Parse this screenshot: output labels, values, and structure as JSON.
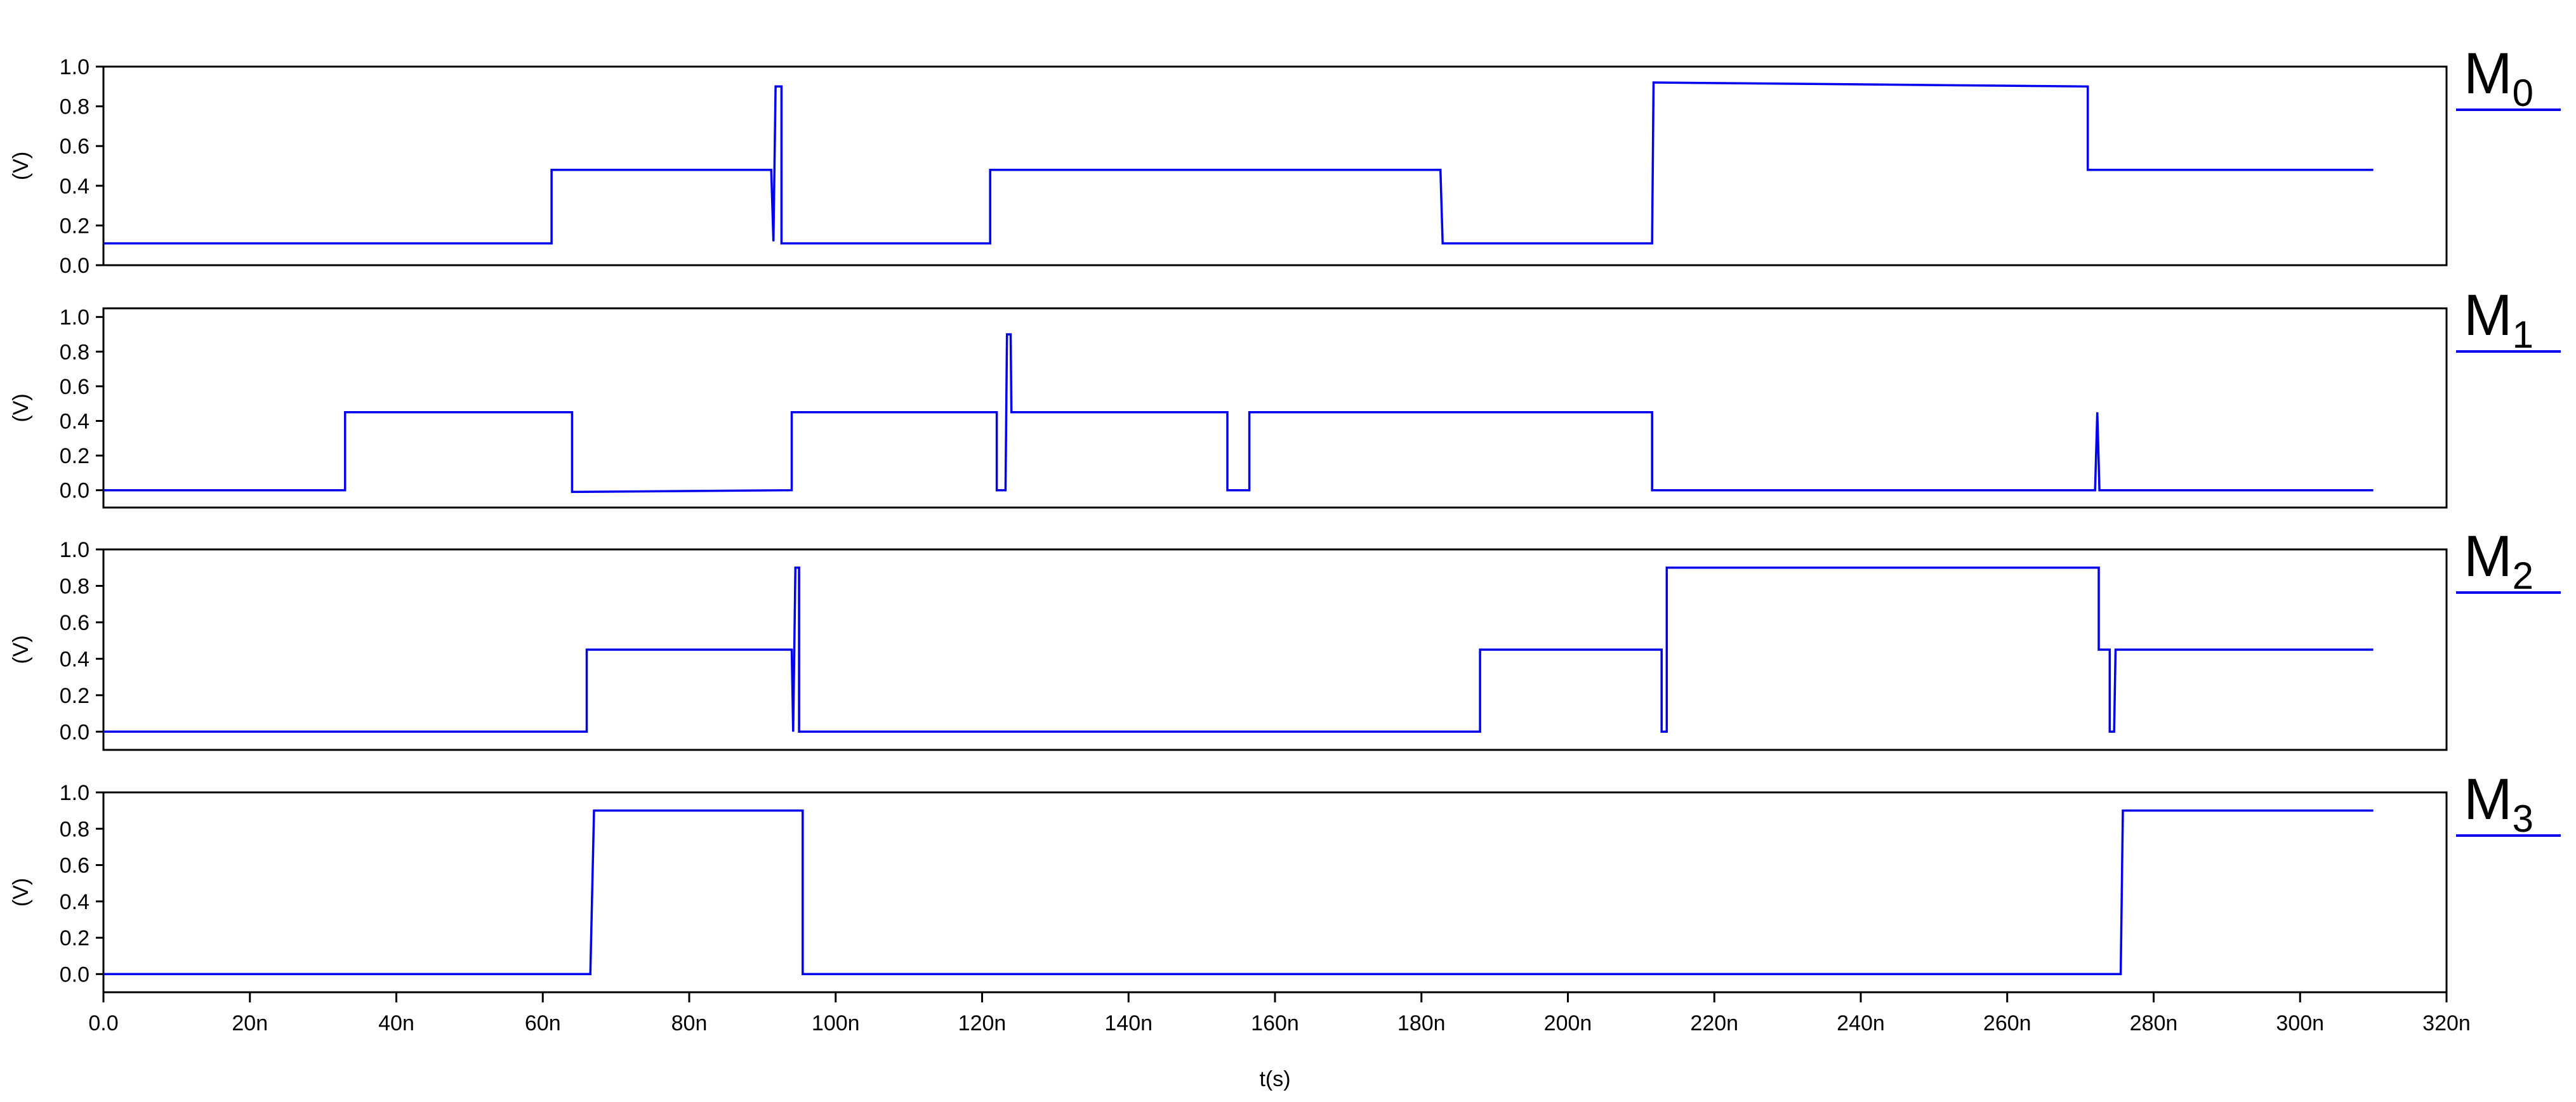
{
  "chart_data": {
    "type": "line",
    "colors": {
      "trace": "#0000ee",
      "axis": "#000000"
    },
    "x_axis": {
      "label": "t(s)",
      "range_ns": [
        0,
        320
      ],
      "ticks": [
        {
          "value": 0,
          "label": "0.0"
        },
        {
          "value": 20,
          "label": "20n"
        },
        {
          "value": 40,
          "label": "40n"
        },
        {
          "value": 60,
          "label": "60n"
        },
        {
          "value": 80,
          "label": "80n"
        },
        {
          "value": 100,
          "label": "100n"
        },
        {
          "value": 120,
          "label": "120n"
        },
        {
          "value": 140,
          "label": "140n"
        },
        {
          "value": 160,
          "label": "160n"
        },
        {
          "value": 180,
          "label": "180n"
        },
        {
          "value": 200,
          "label": "200n"
        },
        {
          "value": 220,
          "label": "220n"
        },
        {
          "value": 240,
          "label": "240n"
        },
        {
          "value": 260,
          "label": "260n"
        },
        {
          "value": 280,
          "label": "280n"
        },
        {
          "value": 300,
          "label": "300n"
        },
        {
          "value": 320,
          "label": "320n"
        }
      ]
    },
    "panels": [
      {
        "name": "M",
        "subscript": "0",
        "ylabel": "(V)",
        "ylim": [
          0.0,
          1.0
        ],
        "yticks": [
          {
            "value": 0.0,
            "label": "0.0"
          },
          {
            "value": 0.2,
            "label": "0.2"
          },
          {
            "value": 0.4,
            "label": "0.4"
          },
          {
            "value": 0.6,
            "label": "0.6"
          },
          {
            "value": 0.8,
            "label": "0.8"
          },
          {
            "value": 1.0,
            "label": "1.0"
          }
        ],
        "points": [
          [
            0,
            0.11
          ],
          [
            61.2,
            0.11
          ],
          [
            61.2,
            0.48
          ],
          [
            91.2,
            0.48
          ],
          [
            91.5,
            0.12
          ],
          [
            91.8,
            0.9
          ],
          [
            92.6,
            0.9
          ],
          [
            92.6,
            0.11
          ],
          [
            121.1,
            0.11
          ],
          [
            121.1,
            0.48
          ],
          [
            182.6,
            0.48
          ],
          [
            182.9,
            0.11
          ],
          [
            211.5,
            0.11
          ],
          [
            211.7,
            0.92
          ],
          [
            271.0,
            0.9
          ],
          [
            271.0,
            0.48
          ],
          [
            310,
            0.48
          ]
        ]
      },
      {
        "name": "M",
        "subscript": "1",
        "ylabel": "(V)",
        "ylim": [
          -0.1,
          1.05
        ],
        "yticks": [
          {
            "value": 0.0,
            "label": "0.0"
          },
          {
            "value": 0.2,
            "label": "0.2"
          },
          {
            "value": 0.4,
            "label": "0.4"
          },
          {
            "value": 0.6,
            "label": "0.6"
          },
          {
            "value": 0.8,
            "label": "0.8"
          },
          {
            "value": 1.0,
            "label": "1.0"
          }
        ],
        "points": [
          [
            0,
            0.0
          ],
          [
            33.0,
            0.0
          ],
          [
            33.0,
            0.45
          ],
          [
            64.0,
            0.45
          ],
          [
            64.0,
            -0.01
          ],
          [
            94.0,
            0.0
          ],
          [
            94.0,
            0.45
          ],
          [
            122.0,
            0.45
          ],
          [
            122.0,
            0.0
          ],
          [
            123.2,
            0.0
          ],
          [
            123.4,
            0.9
          ],
          [
            123.9,
            0.9
          ],
          [
            124.0,
            0.45
          ],
          [
            153.5,
            0.45
          ],
          [
            153.5,
            0.0
          ],
          [
            156.5,
            0.0
          ],
          [
            156.5,
            0.45
          ],
          [
            211.5,
            0.45
          ],
          [
            211.5,
            0.0
          ],
          [
            272.0,
            0.0
          ],
          [
            272.3,
            0.45
          ],
          [
            272.6,
            0.0
          ],
          [
            310,
            0.0
          ]
        ]
      },
      {
        "name": "M",
        "subscript": "2",
        "ylabel": "(V)",
        "ylim": [
          -0.1,
          1.0
        ],
        "yticks": [
          {
            "value": 0.0,
            "label": "0.0"
          },
          {
            "value": 0.2,
            "label": "0.2"
          },
          {
            "value": 0.4,
            "label": "0.4"
          },
          {
            "value": 0.6,
            "label": "0.6"
          },
          {
            "value": 0.8,
            "label": "0.8"
          },
          {
            "value": 1.0,
            "label": "1.0"
          }
        ],
        "points": [
          [
            0,
            0.0
          ],
          [
            66.0,
            0.0
          ],
          [
            66.0,
            0.45
          ],
          [
            94.0,
            0.45
          ],
          [
            94.2,
            0.0
          ],
          [
            94.5,
            0.9
          ],
          [
            95.0,
            0.9
          ],
          [
            95.0,
            0.0
          ],
          [
            188.0,
            0.0
          ],
          [
            188.0,
            0.45
          ],
          [
            212.8,
            0.45
          ],
          [
            212.8,
            0.0
          ],
          [
            213.5,
            0.0
          ],
          [
            213.5,
            0.9
          ],
          [
            272.5,
            0.9
          ],
          [
            272.5,
            0.45
          ],
          [
            274.0,
            0.45
          ],
          [
            274.0,
            0.0
          ],
          [
            274.6,
            0.0
          ],
          [
            274.8,
            0.45
          ],
          [
            310,
            0.45
          ]
        ]
      },
      {
        "name": "M",
        "subscript": "3",
        "ylabel": "(V)",
        "ylim": [
          -0.1,
          1.0
        ],
        "yticks": [
          {
            "value": 0.0,
            "label": "0.0"
          },
          {
            "value": 0.2,
            "label": "0.2"
          },
          {
            "value": 0.4,
            "label": "0.4"
          },
          {
            "value": 0.6,
            "label": "0.6"
          },
          {
            "value": 0.8,
            "label": "0.8"
          },
          {
            "value": 1.0,
            "label": "1.0"
          }
        ],
        "points": [
          [
            0,
            0.0
          ],
          [
            66.5,
            0.0
          ],
          [
            67.0,
            0.9
          ],
          [
            95.5,
            0.9
          ],
          [
            95.5,
            0.0
          ],
          [
            275.5,
            0.0
          ],
          [
            275.8,
            0.9
          ],
          [
            310,
            0.9
          ]
        ]
      }
    ]
  }
}
